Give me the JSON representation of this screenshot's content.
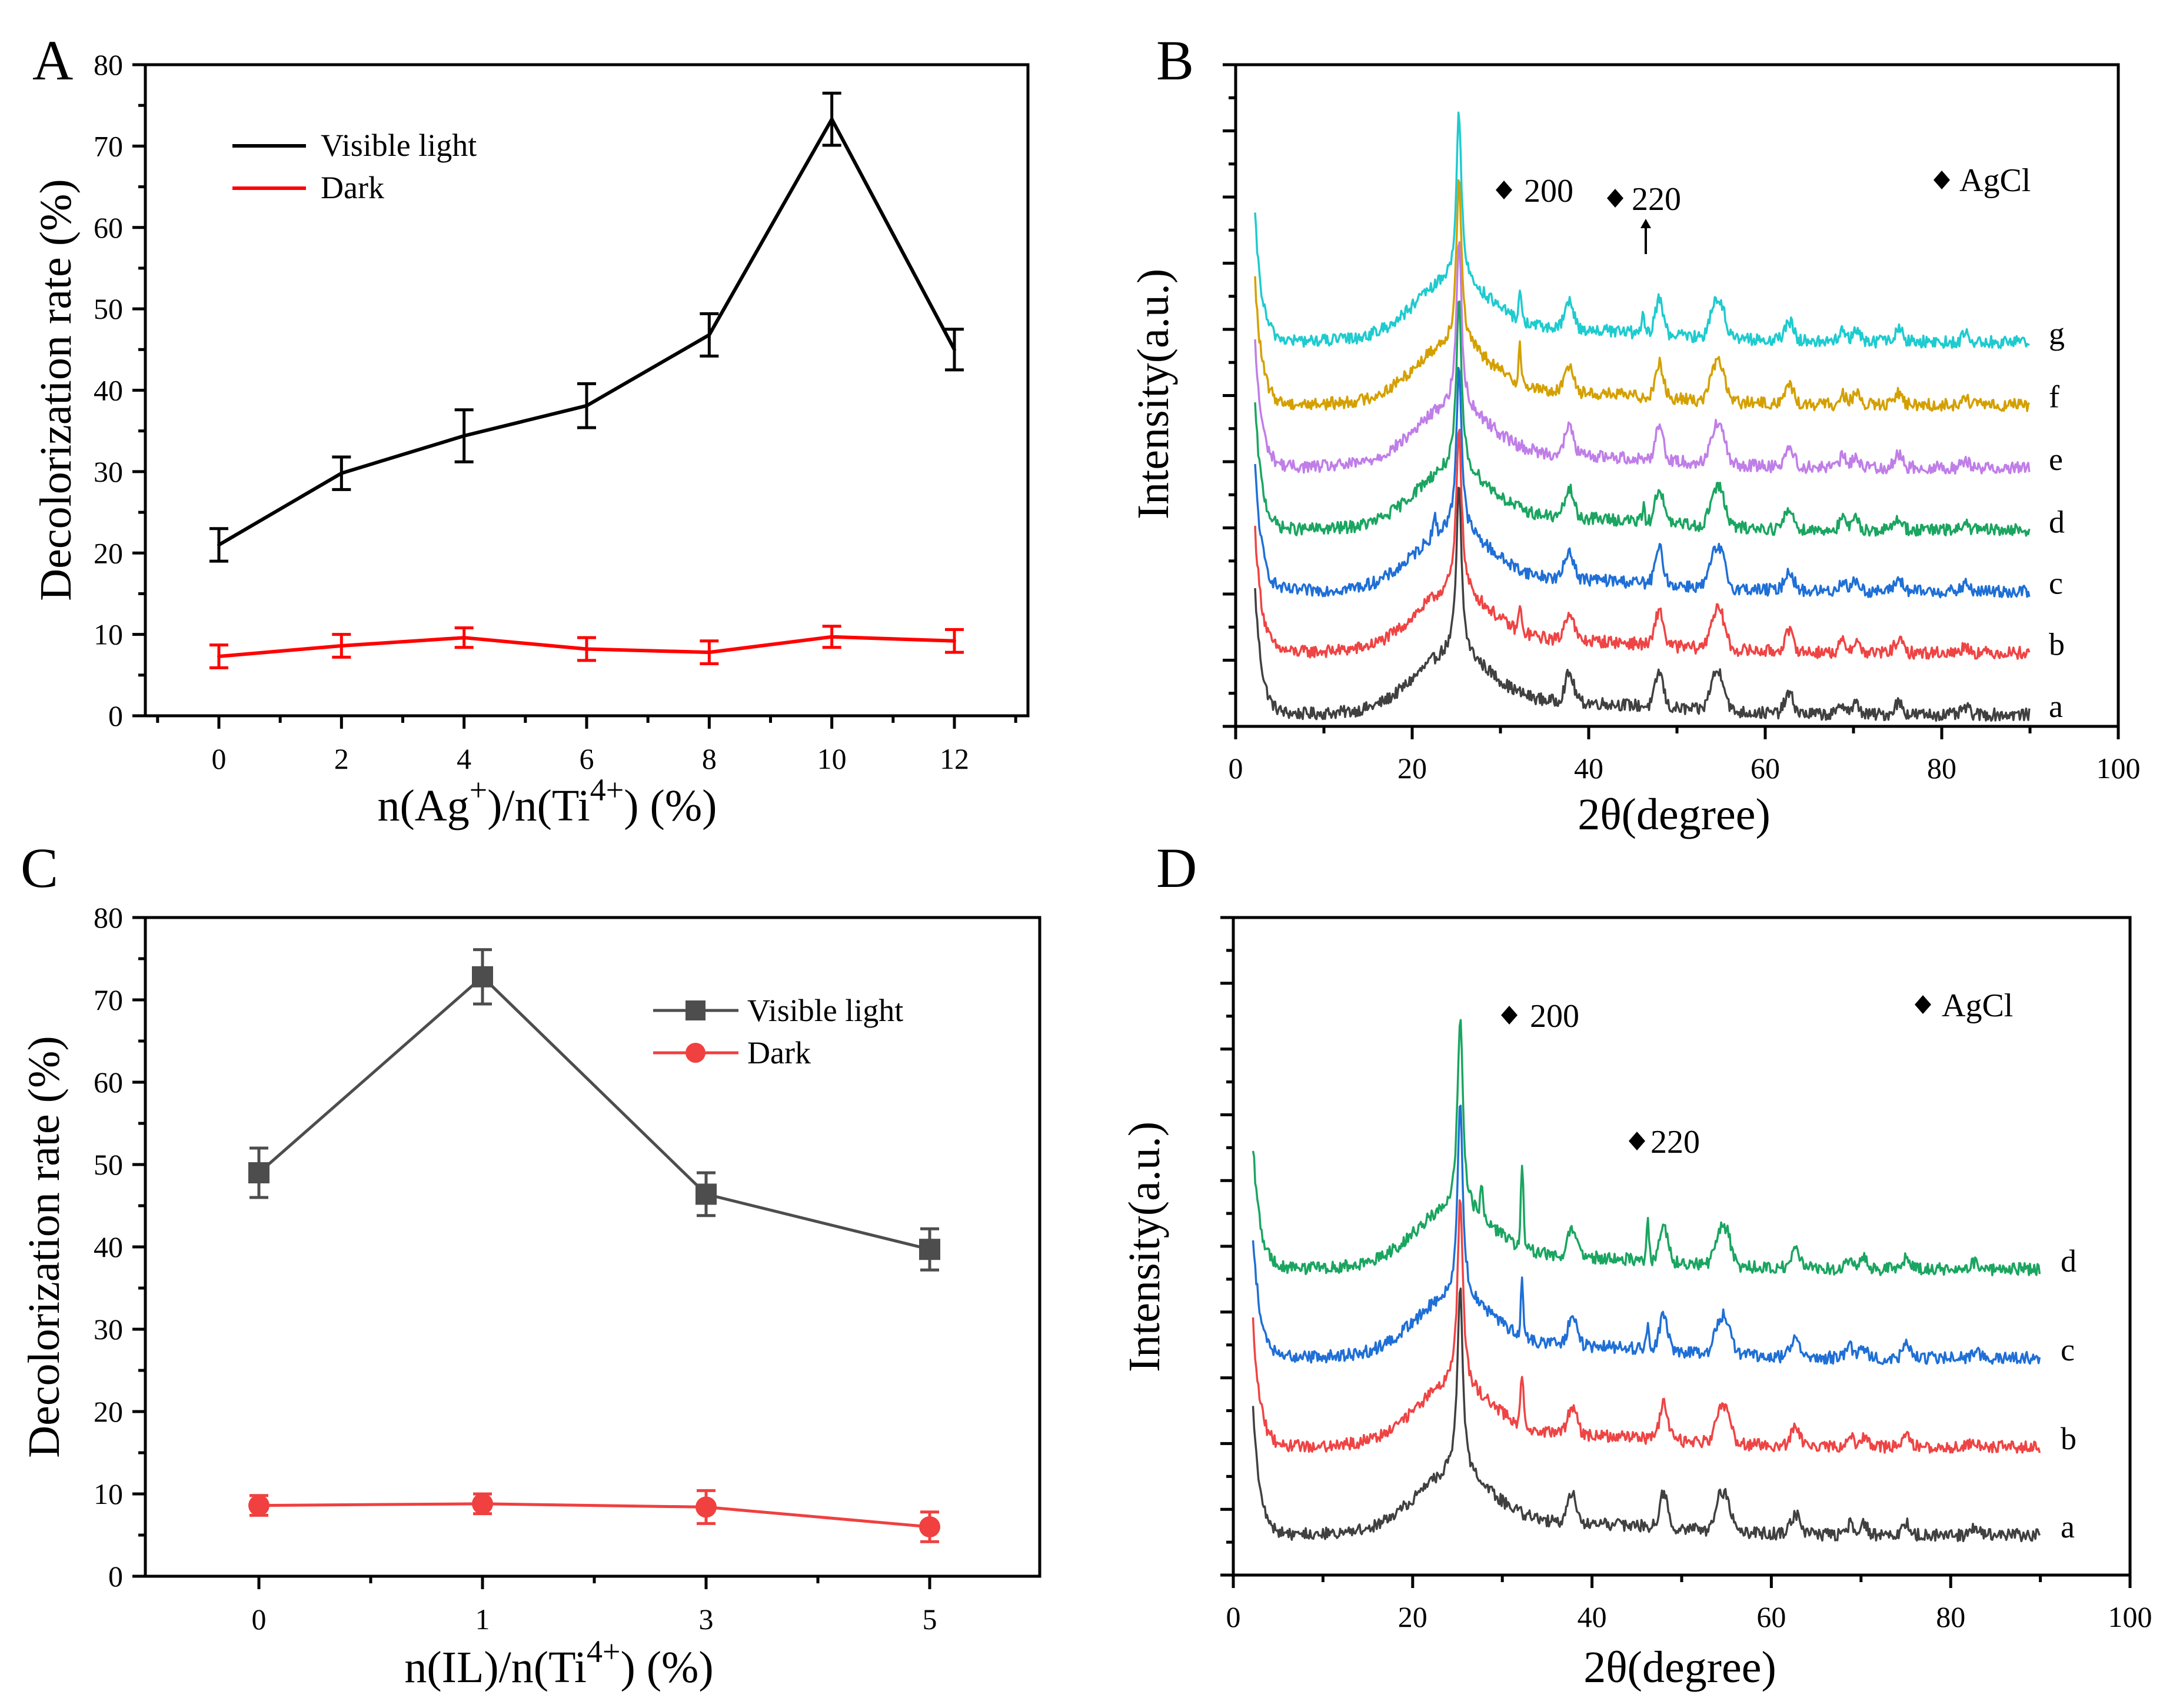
{
  "colors": {
    "black": "#000000",
    "red": "#ff0000",
    "dark_gray": "#4d4d4d",
    "red_light": "#f04040",
    "xrd_a": "#404040",
    "xrd_b": "#ef4444",
    "xrd_c": "#1f6fd6",
    "xrd_d": "#1aa560",
    "xrd_e": "#c07ee8",
    "xrd_f": "#d4a000",
    "xrd_g": "#1ecbcf"
  },
  "chart_data": [
    {
      "panel": "A",
      "type": "line",
      "xlabel": "n(Ag+)/n(Ti4+) (%)",
      "xlabel_parts": {
        "p1": "n(Ag",
        "sup1": "+",
        "p2": ")/n(Ti",
        "sup2": "4+",
        "p3": ") (%)"
      },
      "ylabel": "Decolorization rate (%)",
      "xlim": [
        -1.2,
        13.2
      ],
      "ylim": [
        0,
        80
      ],
      "xticks": [
        "0",
        "2",
        "4",
        "6",
        "8",
        "10",
        "12"
      ],
      "yticks": [
        "0",
        "10",
        "20",
        "30",
        "40",
        "50",
        "60",
        "70",
        "80"
      ],
      "x": [
        0,
        2,
        4,
        6,
        8,
        10,
        12
      ],
      "series": [
        {
          "name": "Visible light",
          "color": "#000000",
          "marker": "none",
          "values": [
            21.0,
            29.8,
            34.4,
            38.1,
            46.8,
            73.3,
            45.0
          ],
          "errors": [
            2.0,
            2.0,
            3.2,
            2.7,
            2.6,
            3.2,
            2.5
          ]
        },
        {
          "name": "Dark",
          "color": "#ff0000",
          "marker": "none",
          "values": [
            7.3,
            8.6,
            9.6,
            8.2,
            7.8,
            9.7,
            9.2
          ],
          "errors": [
            1.4,
            1.4,
            1.2,
            1.4,
            1.4,
            1.3,
            1.4
          ]
        }
      ],
      "legend": "top-left"
    },
    {
      "panel": "B",
      "type": "line",
      "xlabel": "2θ(degree)",
      "ylabel": "Intensity(a.u.)",
      "xlim": [
        0,
        100
      ],
      "xticks": [
        "0",
        "20",
        "40",
        "60",
        "80",
        "100"
      ],
      "series_labels": [
        "a",
        "b",
        "c",
        "d",
        "e",
        "f",
        "g"
      ],
      "offsets": [
        0,
        9.4,
        18.7,
        28.0,
        37.5,
        47.0,
        56.6
      ],
      "peaks_2theta": [
        25.3,
        37.8,
        48.0,
        54.5,
        62.7,
        70.0,
        75.1
      ],
      "annotations": [
        "200",
        "220"
      ],
      "legend_text": "AgCl"
    },
    {
      "panel": "C",
      "type": "line",
      "xlabel": "n(IL)/n(Ti4+) (%)",
      "xlabel_parts": {
        "p1": "n(IL)/n(Ti",
        "sup1": "4+",
        "p2": ") (%)"
      },
      "ylabel": "Decolorization rate (%)",
      "xlim": [
        -0.5,
        5.5
      ],
      "ylim": [
        0,
        80
      ],
      "xticks": [
        "0",
        "1",
        "3",
        "5"
      ],
      "yticks": [
        "0",
        "10",
        "20",
        "30",
        "40",
        "50",
        "60",
        "70",
        "80"
      ],
      "x": [
        0,
        1,
        3,
        5
      ],
      "series": [
        {
          "name": "Visible light",
          "color": "#4d4d4d",
          "marker": "square",
          "values": [
            49.0,
            72.8,
            46.4,
            39.7
          ],
          "errors": [
            3.0,
            3.3,
            2.6,
            2.5
          ]
        },
        {
          "name": "Dark",
          "color": "#f04040",
          "marker": "circle",
          "values": [
            8.6,
            8.8,
            8.4,
            6.0
          ],
          "errors": [
            1.2,
            1.2,
            2.0,
            1.8
          ]
        }
      ],
      "legend": "top-right"
    },
    {
      "panel": "D",
      "type": "line",
      "xlabel": "2θ(degree)",
      "ylabel": "Intensity(a.u.)",
      "xlim": [
        0,
        100
      ],
      "xticks": [
        "0",
        "20",
        "40",
        "60",
        "80",
        "100"
      ],
      "series_labels": [
        "a",
        "b",
        "c",
        "d"
      ],
      "offsets": [
        0,
        10.7,
        21.5,
        32.3
      ],
      "peaks_2theta": [
        25.3,
        32.2,
        37.8,
        46.2,
        48.0,
        54.5,
        62.7
      ],
      "annotations": [
        "200",
        "220"
      ],
      "legend_text": "AgCl"
    }
  ]
}
